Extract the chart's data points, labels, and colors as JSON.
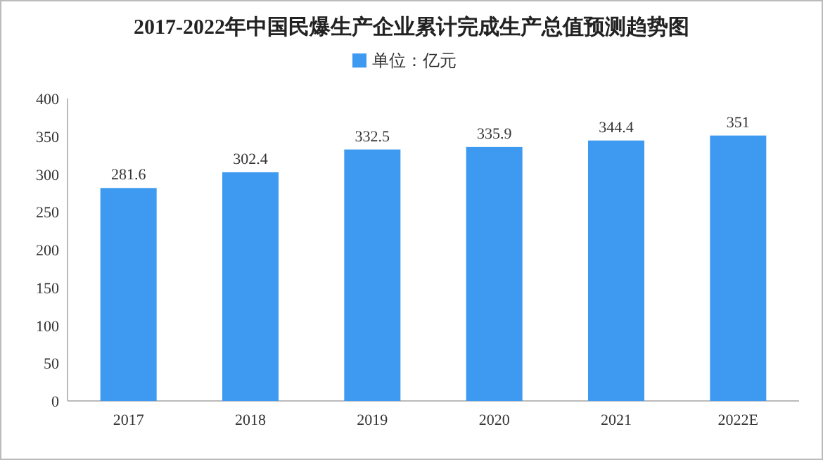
{
  "chart_data": {
    "type": "bar",
    "title": "2017-2022年中国民爆生产企业累计完成生产总值预测趋势图",
    "categories": [
      "2017",
      "2018",
      "2019",
      "2020",
      "2021",
      "2022E"
    ],
    "series": [
      {
        "name": "单位：亿元",
        "color": "#3d9af0",
        "values": [
          281.6,
          302.4,
          332.5,
          335.9,
          344.4,
          351
        ]
      }
    ],
    "ylim": [
      0,
      400
    ],
    "yticks": [
      0,
      50,
      100,
      150,
      200,
      250,
      300,
      350,
      400
    ],
    "data_labels": true,
    "legend": "top"
  }
}
